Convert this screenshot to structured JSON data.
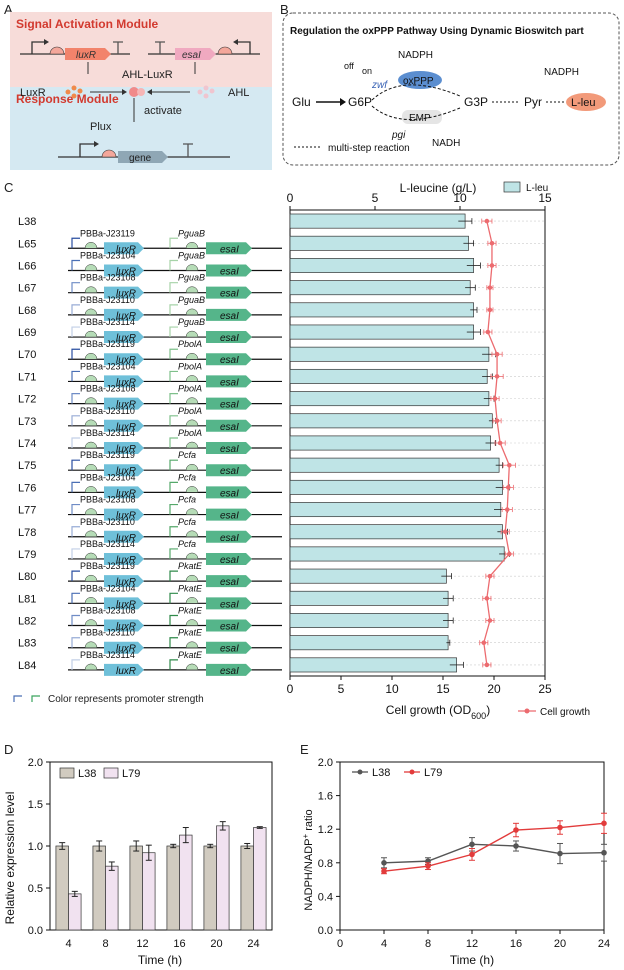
{
  "panels": {
    "A": "A",
    "B": "B",
    "C": "C",
    "D": "D",
    "E": "E"
  },
  "panelA": {
    "signal_title": "Signal Activation Module",
    "response_title": "Response Module",
    "luxR": "luxR",
    "esaI": "esaI",
    "ahl_luxr": "AHL-LuxR",
    "LuxR": "LuxR",
    "AHL": "AHL",
    "plux": "Plux",
    "activate": "activate",
    "gene": "gene",
    "colors": {
      "signal_bg": "#f7dcd9",
      "response_bg": "#d5e9f2",
      "title_red": "#d23a2f"
    }
  },
  "panelB": {
    "title": "Regulation the oxPPP Pathway Using Dynamic Bioswitch part",
    "glu": "Glu",
    "g6p": "G6P",
    "oxppp": "oxPPP",
    "emp": "EMP",
    "g3p": "G3P",
    "pyr": "Pyr",
    "lleu": "L-leu",
    "nadph1": "NADPH",
    "nadph2": "NADPH",
    "nadh": "NADH",
    "off": "off",
    "on": "on",
    "zwf": "zwf",
    "pgi": "pgi",
    "legend": "multi-step reaction"
  },
  "panelC": {
    "top_axis_label": "L-leucine (g/L)",
    "bottom_axis_label": "Cell growth (OD600)",
    "legend_bar": "L-leu",
    "legend_line": "Cell growth",
    "color_note": "Color represents promoter strength",
    "luxR": "luxR",
    "esaI": "esaI"
  },
  "chart_data": [
    {
      "type": "bar",
      "panel": "C",
      "categories": [
        "L38",
        "L65",
        "L66",
        "L67",
        "L68",
        "L69",
        "L70",
        "L71",
        "L72",
        "L73",
        "L74",
        "L75",
        "L76",
        "L77",
        "L78",
        "L79",
        "L80",
        "L81",
        "L82",
        "L83",
        "L84"
      ],
      "luxR_promoters": [
        "",
        "PBBa-J23119",
        "PBBa-J23104",
        "PBBa-J23108",
        "PBBa-J23110",
        "PBBa-J23114",
        "PBBa-J23119",
        "PBBa-J23104",
        "PBBa-J23108",
        "PBBa-J23110",
        "PBBa-J23114",
        "PBBa-J23119",
        "PBBa-J23104",
        "PBBa-J23108",
        "PBBa-J23110",
        "PBBa-J23114",
        "PBBa-J23119",
        "PBBa-J23104",
        "PBBa-J23108",
        "PBBa-J23110",
        "PBBa-J23114"
      ],
      "esaI_promoters": [
        "",
        "PguaB",
        "PguaB",
        "PguaB",
        "PguaB",
        "PguaB",
        "PbolA",
        "PbolA",
        "PbolA",
        "PbolA",
        "PbolA",
        "Pcfa",
        "Pcfa",
        "Pcfa",
        "Pcfa",
        "Pcfa",
        "PkatE",
        "PkatE",
        "PkatE",
        "PkatE",
        "PkatE"
      ],
      "series": [
        {
          "name": "L-leu",
          "axis": "top",
          "values": [
            10.3,
            10.5,
            10.8,
            10.6,
            10.8,
            10.8,
            11.7,
            11.6,
            11.7,
            11.9,
            11.8,
            12.3,
            12.5,
            12.4,
            12.5,
            12.6,
            9.2,
            9.3,
            9.3,
            9.3,
            9.8
          ],
          "errors": [
            0.4,
            0.3,
            0.4,
            0.3,
            0.2,
            0.4,
            0.4,
            0.3,
            0.3,
            0.2,
            0.3,
            0.2,
            0.4,
            0.4,
            0.3,
            0.3,
            0.3,
            0.3,
            0.3,
            0.1,
            0.4
          ]
        },
        {
          "name": "Cell growth",
          "type": "line",
          "axis": "bottom",
          "values": [
            19.3,
            19.8,
            19.8,
            19.6,
            19.6,
            19.4,
            20.3,
            20.3,
            20.1,
            20.3,
            20.6,
            21.5,
            21.4,
            21.3,
            21.1,
            21.5,
            19.6,
            19.3,
            19.6,
            19.0,
            19.3
          ],
          "errors": [
            0.5,
            0.4,
            0.4,
            0.3,
            0.3,
            0.4,
            0.5,
            0.6,
            0.4,
            0.4,
            0.5,
            0.6,
            0.5,
            0.5,
            0.4,
            0.4,
            0.4,
            0.4,
            0.4,
            0.4,
            0.4
          ]
        }
      ],
      "xlim_top": [
        0,
        15
      ],
      "xticks_top": [
        "0",
        "5",
        "10",
        "15"
      ],
      "xlim_bottom": [
        0,
        25
      ],
      "xticks_bottom": [
        "0",
        "5",
        "10",
        "15",
        "20",
        "25"
      ],
      "colors": {
        "bar": "#bfe4e6",
        "line": "#ec6b6f"
      }
    },
    {
      "type": "bar",
      "panel": "D",
      "categories": [
        "4",
        "8",
        "12",
        "16",
        "20",
        "24"
      ],
      "series": [
        {
          "name": "L38",
          "values": [
            1.0,
            1.0,
            1.0,
            1.0,
            1.0,
            1.0
          ],
          "errors": [
            0.04,
            0.06,
            0.06,
            0.02,
            0.02,
            0.03
          ]
        },
        {
          "name": "L79",
          "values": [
            0.43,
            0.76,
            0.92,
            1.13,
            1.24,
            1.22
          ],
          "errors": [
            0.03,
            0.05,
            0.09,
            0.09,
            0.05,
            0.01
          ]
        }
      ],
      "ylabel": "Relative expression level",
      "xlabel": "Time (h)",
      "ylim": [
        0,
        2.0
      ],
      "yticks": [
        "0.0",
        "0.5",
        "1.0",
        "1.5",
        "2.0"
      ],
      "colors": {
        "L38": "#d1cbc0",
        "L79": "#f1e2f0"
      }
    },
    {
      "type": "line",
      "panel": "E",
      "x": [
        4,
        8,
        12,
        16,
        20,
        24
      ],
      "series": [
        {
          "name": "L38",
          "values": [
            0.8,
            0.82,
            1.02,
            1.0,
            0.91,
            0.92
          ],
          "errors": [
            0.06,
            0.04,
            0.08,
            0.06,
            0.12,
            0.1
          ]
        },
        {
          "name": "L79",
          "values": [
            0.7,
            0.76,
            0.9,
            1.19,
            1.22,
            1.27
          ],
          "errors": [
            0.03,
            0.04,
            0.07,
            0.08,
            0.08,
            0.12
          ]
        }
      ],
      "ylabel": "NADPH/NADP+ ratio",
      "xlabel": "Time (h)",
      "xlim": [
        0,
        24
      ],
      "xticks": [
        "0",
        "4",
        "8",
        "12",
        "16",
        "20",
        "24"
      ],
      "ylim": [
        0,
        2.0
      ],
      "yticks": [
        "0.0",
        "0.4",
        "0.8",
        "1.2",
        "1.6",
        "2.0"
      ],
      "colors": {
        "L38": "#555555",
        "L79": "#e23b3b"
      }
    }
  ]
}
